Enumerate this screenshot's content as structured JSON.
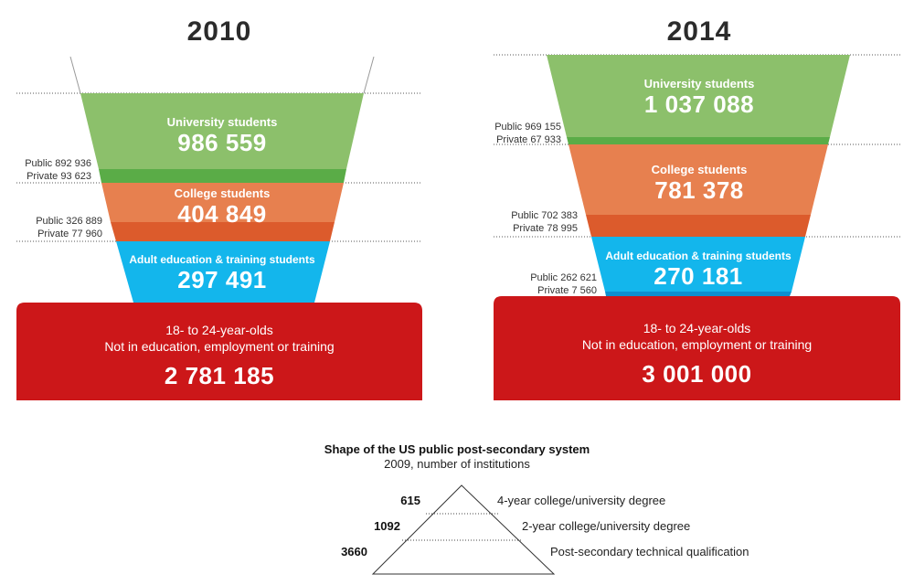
{
  "funnel_2010": {
    "year": "2010",
    "university": {
      "label": "University students",
      "total": "986 559",
      "public": "Public 892 936",
      "private": "Private 93 623"
    },
    "college": {
      "label": "College students",
      "total": "404 849",
      "public": "Public 326 889",
      "private": "Private 77 960"
    },
    "adult": {
      "label": "Adult education & training students",
      "total": "297 491"
    },
    "neet": {
      "line1": "18- to 24-year-olds",
      "line2": "Not in education, employment or training",
      "total": "2 781 185"
    }
  },
  "funnel_2014": {
    "year": "2014",
    "university": {
      "label": "University students",
      "total": "1 037 088",
      "public": "Public 969 155",
      "private": "Private 67 933"
    },
    "college": {
      "label": "College students",
      "total": "781 378",
      "public": "Public 702 383",
      "private": "Private 78 995"
    },
    "adult": {
      "label": "Adult education & training students",
      "total": "270 181",
      "public": "Public 262 621",
      "private": "Private 7 560"
    },
    "neet": {
      "line1": "18- to 24-year-olds",
      "line2": "Not in education, employment or training",
      "total": "3 001 000"
    }
  },
  "pyramid": {
    "title": "Shape of the US public post-secondary system",
    "subtitle": "2009, number of institutions",
    "tiers": [
      {
        "count": "615",
        "label": "4-year college/university degree"
      },
      {
        "count": "1092",
        "label": "2-year college/university degree"
      },
      {
        "count": "3660",
        "label": "Post-secondary technical qualification"
      }
    ]
  },
  "colors": {
    "university": "#8cc06b",
    "university_dark": "#5aac47",
    "college": "#e7804f",
    "college_dark": "#dc5b2c",
    "adult": "#13b6ec",
    "adult_dark": "#0d8fcf",
    "neet": "#cc1719"
  }
}
